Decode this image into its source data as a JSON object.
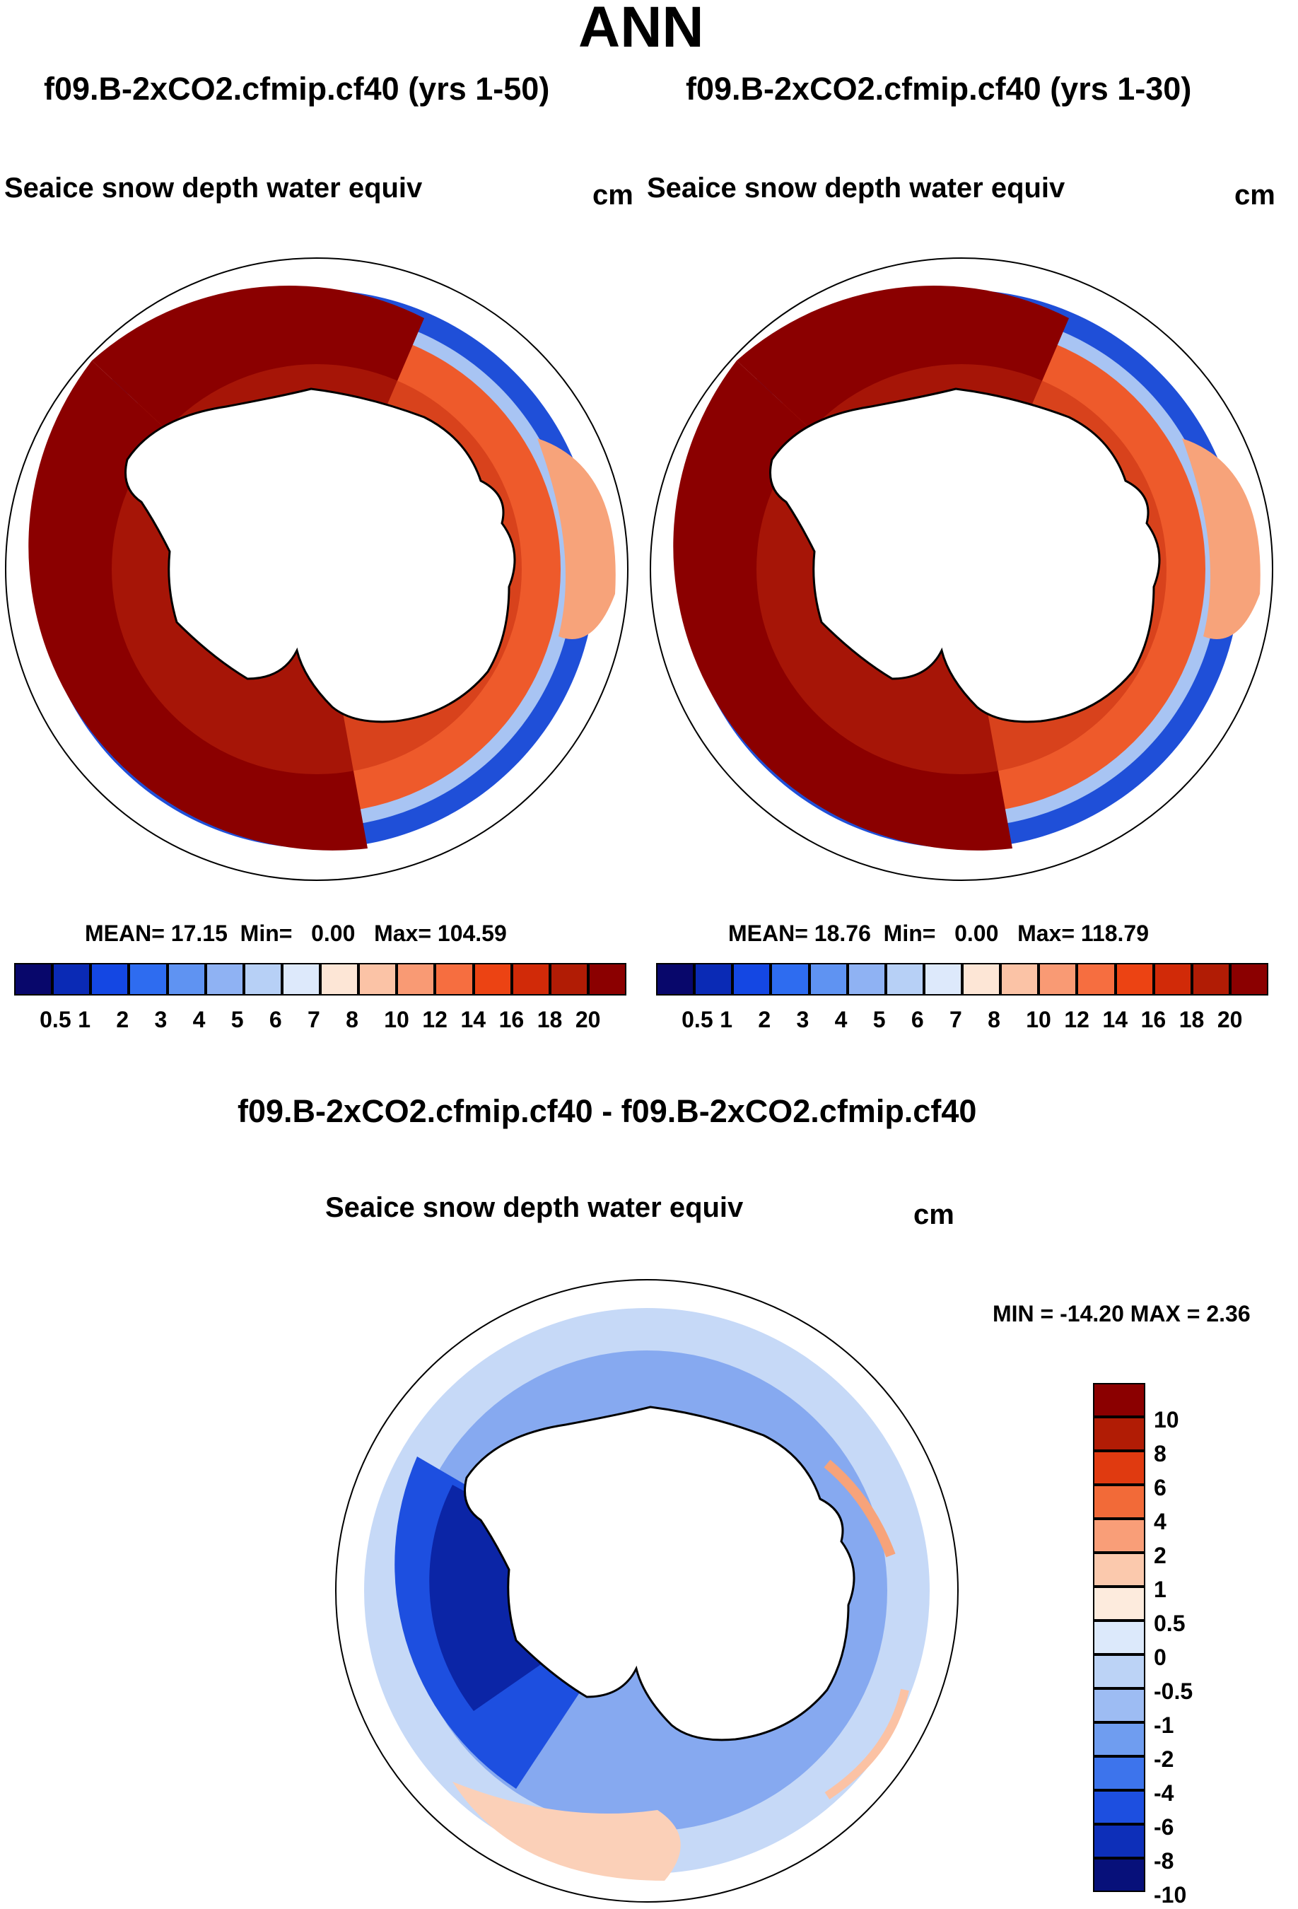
{
  "page_title": "ANN",
  "panels": [
    {
      "case_title": "f09.B-2xCO2.cfmip.cf40 (yrs 1-50)",
      "variable": "Seaice snow depth water equiv",
      "units": "cm",
      "stats": {
        "mean_label": "MEAN=",
        "mean": "17.15",
        "min_label": "Min=",
        "min": "0.00",
        "max_label": "Max=",
        "max": "104.59"
      }
    },
    {
      "case_title": "f09.B-2xCO2.cfmip.cf40 (yrs 1-30)",
      "variable": "Seaice snow depth water equiv",
      "units": "cm",
      "stats": {
        "mean_label": "MEAN=",
        "mean": "18.76",
        "min_label": "Min=",
        "min": "0.00",
        "max_label": "Max=",
        "max": "118.79"
      }
    }
  ],
  "diff": {
    "case_title": "f09.B-2xCO2.cfmip.cf40 - f09.B-2xCO2.cfmip.cf40",
    "variable": "Seaice snow depth water equiv",
    "units": "cm",
    "minmax_text": "MIN = -14.20 MAX =   2.36"
  },
  "colorbar_top": {
    "colors": [
      "#08076b",
      "#0a2ab5",
      "#1447e3",
      "#2e6cf0",
      "#5f93f2",
      "#8fb2f3",
      "#b7d0f6",
      "#dde9fb",
      "#fde6d6",
      "#fbc3a6",
      "#f99a74",
      "#f66e40",
      "#ec4313",
      "#d12a08",
      "#b11c05",
      "#8b0000"
    ],
    "labels": [
      "0.5",
      "1",
      "2",
      "3",
      "4",
      "5",
      "6",
      "7",
      "8",
      "10",
      "12",
      "14",
      "16",
      "18",
      "20"
    ]
  },
  "colorbar_diff": {
    "colors": [
      "#8b0000",
      "#b11c05",
      "#e03a10",
      "#f26a38",
      "#f99e78",
      "#fbc9ad",
      "#fdebdd",
      "#dce9fb",
      "#bcd3f6",
      "#9dbcf3",
      "#6f9df0",
      "#3d74ec",
      "#1d4fe0",
      "#0d2fb9",
      "#07107a"
    ],
    "labels": [
      "10",
      "8",
      "6",
      "4",
      "2",
      "1",
      "0.5",
      "0",
      "-0.5",
      "-1",
      "-2",
      "-4",
      "-6",
      "-8",
      "-10"
    ]
  }
}
